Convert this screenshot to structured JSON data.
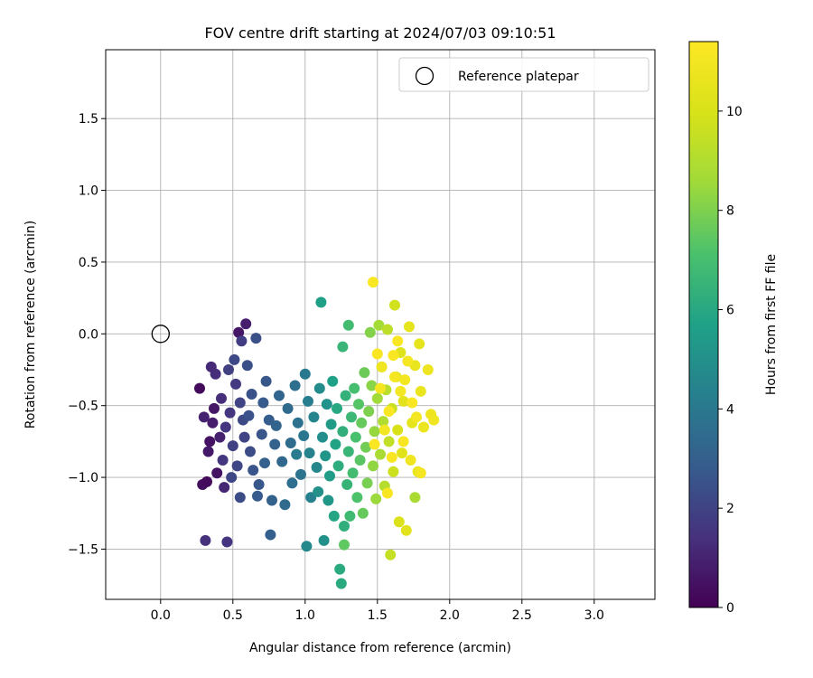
{
  "chart_data": {
    "type": "scatter",
    "title": "FOV centre drift starting at 2024/07/03 09:10:51",
    "xlabel": "Angular distance from reference (arcmin)",
    "ylabel": "Rotation from reference (arcmin)",
    "xlim": [
      -0.38,
      3.42
    ],
    "ylim": [
      -1.85,
      1.98
    ],
    "x_ticks": [
      0.0,
      0.5,
      1.0,
      1.5,
      2.0,
      2.5,
      3.0
    ],
    "x_tick_labels": [
      "0.0",
      "0.5",
      "1.0",
      "1.5",
      "2.0",
      "2.5",
      "3.0"
    ],
    "y_ticks": [
      -1.5,
      -1.0,
      -0.5,
      0.0,
      0.5,
      1.0,
      1.5
    ],
    "y_tick_labels": [
      "−1.5",
      "−1.0",
      "−0.5",
      "0.0",
      "0.5",
      "1.0",
      "1.5"
    ],
    "grid": true,
    "legend": {
      "placement": "top-right",
      "entries": [
        "Reference platepar"
      ]
    },
    "reference_point": {
      "x": 0.0,
      "y": 0.0
    },
    "colorbar": {
      "label": "Hours from first FF file",
      "min": 0,
      "max": 11.4,
      "ticks": [
        0,
        2,
        4,
        6,
        8,
        10
      ],
      "tick_labels": [
        "0",
        "2",
        "4",
        "6",
        "8",
        "10"
      ],
      "colormap": "viridis"
    },
    "points": [
      [
        0.27,
        -0.38,
        0.3
      ],
      [
        0.29,
        -1.05,
        0.4
      ],
      [
        0.32,
        -1.03,
        0.3
      ],
      [
        0.34,
        -0.75,
        0.5
      ],
      [
        0.37,
        -0.52,
        0.6
      ],
      [
        0.39,
        -0.97,
        0.5
      ],
      [
        0.33,
        -0.82,
        0.7
      ],
      [
        0.36,
        -0.62,
        0.8
      ],
      [
        0.41,
        -0.72,
        0.9
      ],
      [
        0.3,
        -0.58,
        1.0
      ],
      [
        0.44,
        -1.07,
        1.1
      ],
      [
        0.35,
        -0.23,
        1.2
      ],
      [
        0.38,
        -0.28,
        1.3
      ],
      [
        0.42,
        -0.45,
        1.3
      ],
      [
        0.31,
        -1.44,
        1.4
      ],
      [
        0.46,
        -1.45,
        1.5
      ],
      [
        0.45,
        -0.65,
        1.5
      ],
      [
        0.43,
        -0.88,
        1.6
      ],
      [
        0.48,
        -0.55,
        1.6
      ],
      [
        0.52,
        -0.35,
        1.7
      ],
      [
        0.54,
        0.01,
        0.6
      ],
      [
        0.59,
        0.07,
        0.8
      ],
      [
        0.56,
        -0.05,
        1.8
      ],
      [
        0.5,
        -0.78,
        1.9
      ],
      [
        0.47,
        -0.25,
        1.9
      ],
      [
        0.55,
        -0.48,
        2.0
      ],
      [
        0.58,
        -0.72,
        2.0
      ],
      [
        0.53,
        -0.92,
        2.1
      ],
      [
        0.49,
        -1.0,
        2.1
      ],
      [
        0.51,
        -0.18,
        2.2
      ],
      [
        0.57,
        -0.6,
        2.2
      ],
      [
        0.62,
        -0.82,
        2.3
      ],
      [
        0.55,
        -1.14,
        2.3
      ],
      [
        0.66,
        -0.03,
        2.4
      ],
      [
        0.6,
        -0.22,
        2.4
      ],
      [
        0.63,
        -0.42,
        2.5
      ],
      [
        0.61,
        -0.57,
        2.5
      ],
      [
        0.64,
        -0.95,
        2.6
      ],
      [
        0.7,
        -0.7,
        2.6
      ],
      [
        0.68,
        -1.05,
        2.7
      ],
      [
        0.73,
        -0.33,
        2.7
      ],
      [
        0.71,
        -0.48,
        2.8
      ],
      [
        0.67,
        -1.13,
        2.8
      ],
      [
        0.75,
        -0.6,
        2.9
      ],
      [
        0.76,
        -1.4,
        3.0
      ],
      [
        0.72,
        -0.9,
        3.0
      ],
      [
        0.79,
        -0.77,
        3.1
      ],
      [
        0.77,
        -1.16,
        3.1
      ],
      [
        0.82,
        -0.43,
        3.2
      ],
      [
        0.8,
        -0.64,
        3.2
      ],
      [
        0.84,
        -0.89,
        3.3
      ],
      [
        0.86,
        -1.19,
        3.4
      ],
      [
        0.88,
        -0.52,
        3.4
      ],
      [
        0.9,
        -0.76,
        3.5
      ],
      [
        0.93,
        -0.36,
        3.6
      ],
      [
        0.91,
        -1.04,
        3.6
      ],
      [
        0.95,
        -0.62,
        3.7
      ],
      [
        0.97,
        -0.98,
        3.8
      ],
      [
        0.99,
        -0.71,
        3.9
      ],
      [
        1.0,
        -0.28,
        4.0
      ],
      [
        0.94,
        -0.84,
        4.1
      ],
      [
        1.02,
        -0.47,
        4.2
      ],
      [
        1.04,
        -1.14,
        4.3
      ],
      [
        1.03,
        -0.83,
        4.4
      ],
      [
        1.06,
        -0.58,
        4.5
      ],
      [
        1.08,
        -0.93,
        4.6
      ],
      [
        1.01,
        -1.48,
        4.7
      ],
      [
        1.1,
        -0.38,
        4.8
      ],
      [
        1.12,
        -0.72,
        4.9
      ],
      [
        1.09,
        -1.1,
        5.0
      ],
      [
        1.13,
        -1.44,
        5.0
      ],
      [
        1.15,
        -0.49,
        5.1
      ],
      [
        1.14,
        -0.85,
        5.2
      ],
      [
        1.16,
        -1.16,
        5.3
      ],
      [
        1.18,
        -0.63,
        5.4
      ],
      [
        1.17,
        -0.99,
        5.5
      ],
      [
        1.11,
        0.22,
        5.6
      ],
      [
        1.19,
        -0.33,
        5.7
      ],
      [
        1.21,
        -0.77,
        5.8
      ],
      [
        1.2,
        -1.27,
        5.9
      ],
      [
        1.22,
        -0.52,
        6.0
      ],
      [
        1.24,
        -1.64,
        6.1
      ],
      [
        1.25,
        -1.74,
        6.1
      ],
      [
        1.23,
        -0.92,
        6.2
      ],
      [
        1.26,
        -0.68,
        6.3
      ],
      [
        1.27,
        -1.34,
        6.3
      ],
      [
        1.28,
        -0.43,
        6.4
      ],
      [
        1.29,
        -1.05,
        6.5
      ],
      [
        1.3,
        -0.82,
        6.6
      ],
      [
        1.26,
        -0.09,
        6.6
      ],
      [
        1.32,
        -0.58,
        6.7
      ],
      [
        1.31,
        -1.27,
        6.8
      ],
      [
        1.33,
        -0.97,
        6.9
      ],
      [
        1.3,
        0.06,
        6.9
      ],
      [
        1.34,
        -0.38,
        7.0
      ],
      [
        1.35,
        -0.72,
        7.1
      ],
      [
        1.36,
        -1.14,
        7.2
      ],
      [
        1.37,
        -0.49,
        7.3
      ],
      [
        1.38,
        -0.88,
        7.4
      ],
      [
        1.27,
        -1.47,
        7.5
      ],
      [
        1.39,
        -0.62,
        7.6
      ],
      [
        1.4,
        -1.25,
        7.6
      ],
      [
        1.41,
        -0.27,
        7.7
      ],
      [
        1.42,
        -0.79,
        7.8
      ],
      [
        1.43,
        -1.04,
        7.9
      ],
      [
        1.44,
        -0.54,
        8.0
      ],
      [
        1.45,
        0.01,
        8.1
      ],
      [
        1.46,
        -0.36,
        8.2
      ],
      [
        1.47,
        -0.92,
        8.3
      ],
      [
        1.48,
        -0.68,
        8.4
      ],
      [
        1.49,
        -1.15,
        8.5
      ],
      [
        1.5,
        -0.45,
        8.6
      ],
      [
        1.51,
        0.06,
        8.7
      ],
      [
        1.52,
        -0.84,
        8.8
      ],
      [
        1.53,
        -0.23,
        8.9
      ],
      [
        1.54,
        -0.61,
        9.0
      ],
      [
        1.55,
        -1.06,
        9.1
      ],
      [
        1.56,
        -0.39,
        9.2
      ],
      [
        1.57,
        0.03,
        9.3
      ],
      [
        1.58,
        -0.75,
        9.4
      ],
      [
        1.59,
        -1.54,
        9.5
      ],
      [
        1.6,
        -0.52,
        9.6
      ],
      [
        1.61,
        -0.96,
        9.7
      ],
      [
        1.62,
        0.2,
        9.8
      ],
      [
        1.63,
        -0.3,
        9.9
      ],
      [
        1.64,
        -0.67,
        10.0
      ],
      [
        1.65,
        -1.31,
        10.1
      ],
      [
        1.66,
        -0.13,
        10.2
      ],
      [
        1.67,
        -0.83,
        10.3
      ],
      [
        1.68,
        -0.47,
        10.4
      ],
      [
        1.7,
        -1.37,
        10.4
      ],
      [
        1.72,
        0.05,
        10.5
      ],
      [
        1.74,
        -0.62,
        10.5
      ],
      [
        1.76,
        -0.22,
        10.6
      ],
      [
        1.78,
        -0.96,
        10.6
      ],
      [
        1.8,
        -0.4,
        10.7
      ],
      [
        1.82,
        -0.65,
        10.7
      ],
      [
        1.85,
        -0.25,
        10.8
      ],
      [
        1.87,
        -0.56,
        10.8
      ],
      [
        1.89,
        -0.6,
        10.9
      ],
      [
        1.76,
        -1.14,
        8.8
      ],
      [
        1.79,
        -0.07,
        10.5
      ],
      [
        1.47,
        0.36,
        11.3
      ],
      [
        1.5,
        -0.14,
        11.2
      ],
      [
        1.52,
        -0.38,
        11.1
      ],
      [
        1.55,
        -0.67,
        11.0
      ],
      [
        1.58,
        -0.54,
        11.3
      ],
      [
        1.6,
        -0.86,
        11.2
      ],
      [
        1.62,
        -0.3,
        11.1
      ],
      [
        1.64,
        -0.05,
        11.3
      ],
      [
        1.66,
        -0.4,
        11.0
      ],
      [
        1.68,
        -0.75,
        11.2
      ],
      [
        1.71,
        -0.19,
        11.1
      ],
      [
        1.74,
        -0.48,
        11.3
      ],
      [
        1.77,
        -0.58,
        11.0
      ],
      [
        1.8,
        -0.97,
        11.1
      ],
      [
        1.57,
        -1.11,
        11.2
      ],
      [
        1.48,
        -0.77,
        11.3
      ],
      [
        1.53,
        -0.23,
        10.9
      ],
      [
        1.61,
        -0.15,
        11.2
      ],
      [
        1.69,
        -0.32,
        11.0
      ],
      [
        1.73,
        -0.88,
        10.9
      ]
    ]
  }
}
